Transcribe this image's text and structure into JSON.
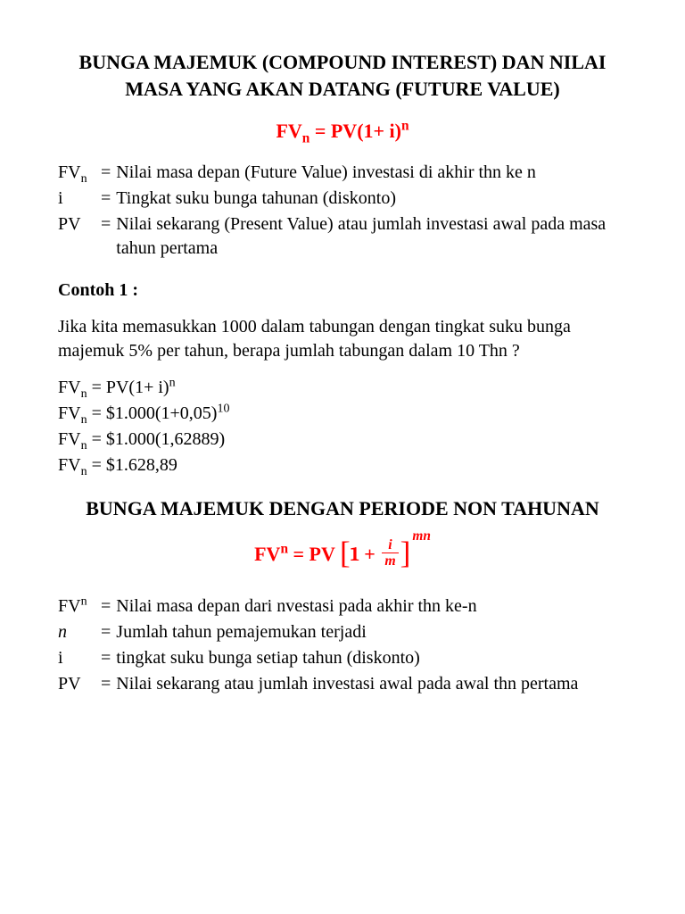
{
  "title1": "BUNGA MAJEMUK (COMPOUND INTEREST) DAN NILAI MASA YANG AKAN DATANG (FUTURE VALUE)",
  "formula1": {
    "lhs_base": "FV",
    "lhs_sub": "n",
    "rhs": " = PV(1+ i)",
    "rhs_sup": "n"
  },
  "defs1": [
    {
      "term": "FV",
      "sub": "n",
      "text": "Nilai masa depan (Future Value) investasi di akhir thn ke n"
    },
    {
      "term": "i",
      "sub": "",
      "text": "Tingkat suku bunga tahunan (diskonto)"
    },
    {
      "term": "PV",
      "sub": "",
      "text": "Nilai sekarang (Present Value) atau jumlah investasi awal pada masa tahun pertama"
    }
  ],
  "example_label": "Contoh 1 :",
  "example_text": "Jika kita memasukkan 1000 dalam tabungan dengan tingkat suku bunga majemuk 5% per tahun, berapa jumlah tabungan dalam 10 Thn ?",
  "calc": [
    {
      "lhs": "FV",
      "sub": "n",
      "rhs": " = PV(1+ i)",
      "sup": "n"
    },
    {
      "lhs": "FV",
      "sub": "n",
      "rhs": " = $1.000(1+0,05)",
      "sup": "10"
    },
    {
      "lhs": "FV",
      "sub": "n",
      "rhs": " = $1.000(1,62889)",
      "sup": ""
    },
    {
      "lhs": "FV",
      "sub": "n",
      "rhs": " = $1.628,89",
      "sup": ""
    }
  ],
  "title2": "BUNGA MAJEMUK DENGAN PERIODE NON TAHUNAN",
  "formula2": {
    "lhs": "FV",
    "lhs_sup": "n",
    "eq": " = PV ",
    "one": "1",
    "plus": " + ",
    "frac_num": "i",
    "frac_den": "m",
    "exp": "mn"
  },
  "defs2": [
    {
      "term": "FV",
      "sup": "n",
      "italic": false,
      "text": "Nilai masa depan dari nvestasi pada akhir thn ke-n"
    },
    {
      "term": "n",
      "sup": "",
      "italic": true,
      "text": "Jumlah tahun pemajemukan terjadi"
    },
    {
      "term": "i",
      "sup": "",
      "italic": false,
      "text": "tingkat suku bunga setiap tahun (diskonto)"
    },
    {
      "term": "PV",
      "sup": "",
      "italic": false,
      "text": "Nilai sekarang atau jumlah investasi awal pada awal thn pertama"
    }
  ],
  "colors": {
    "text": "#000000",
    "formula": "#ff0000",
    "background": "#ffffff"
  }
}
